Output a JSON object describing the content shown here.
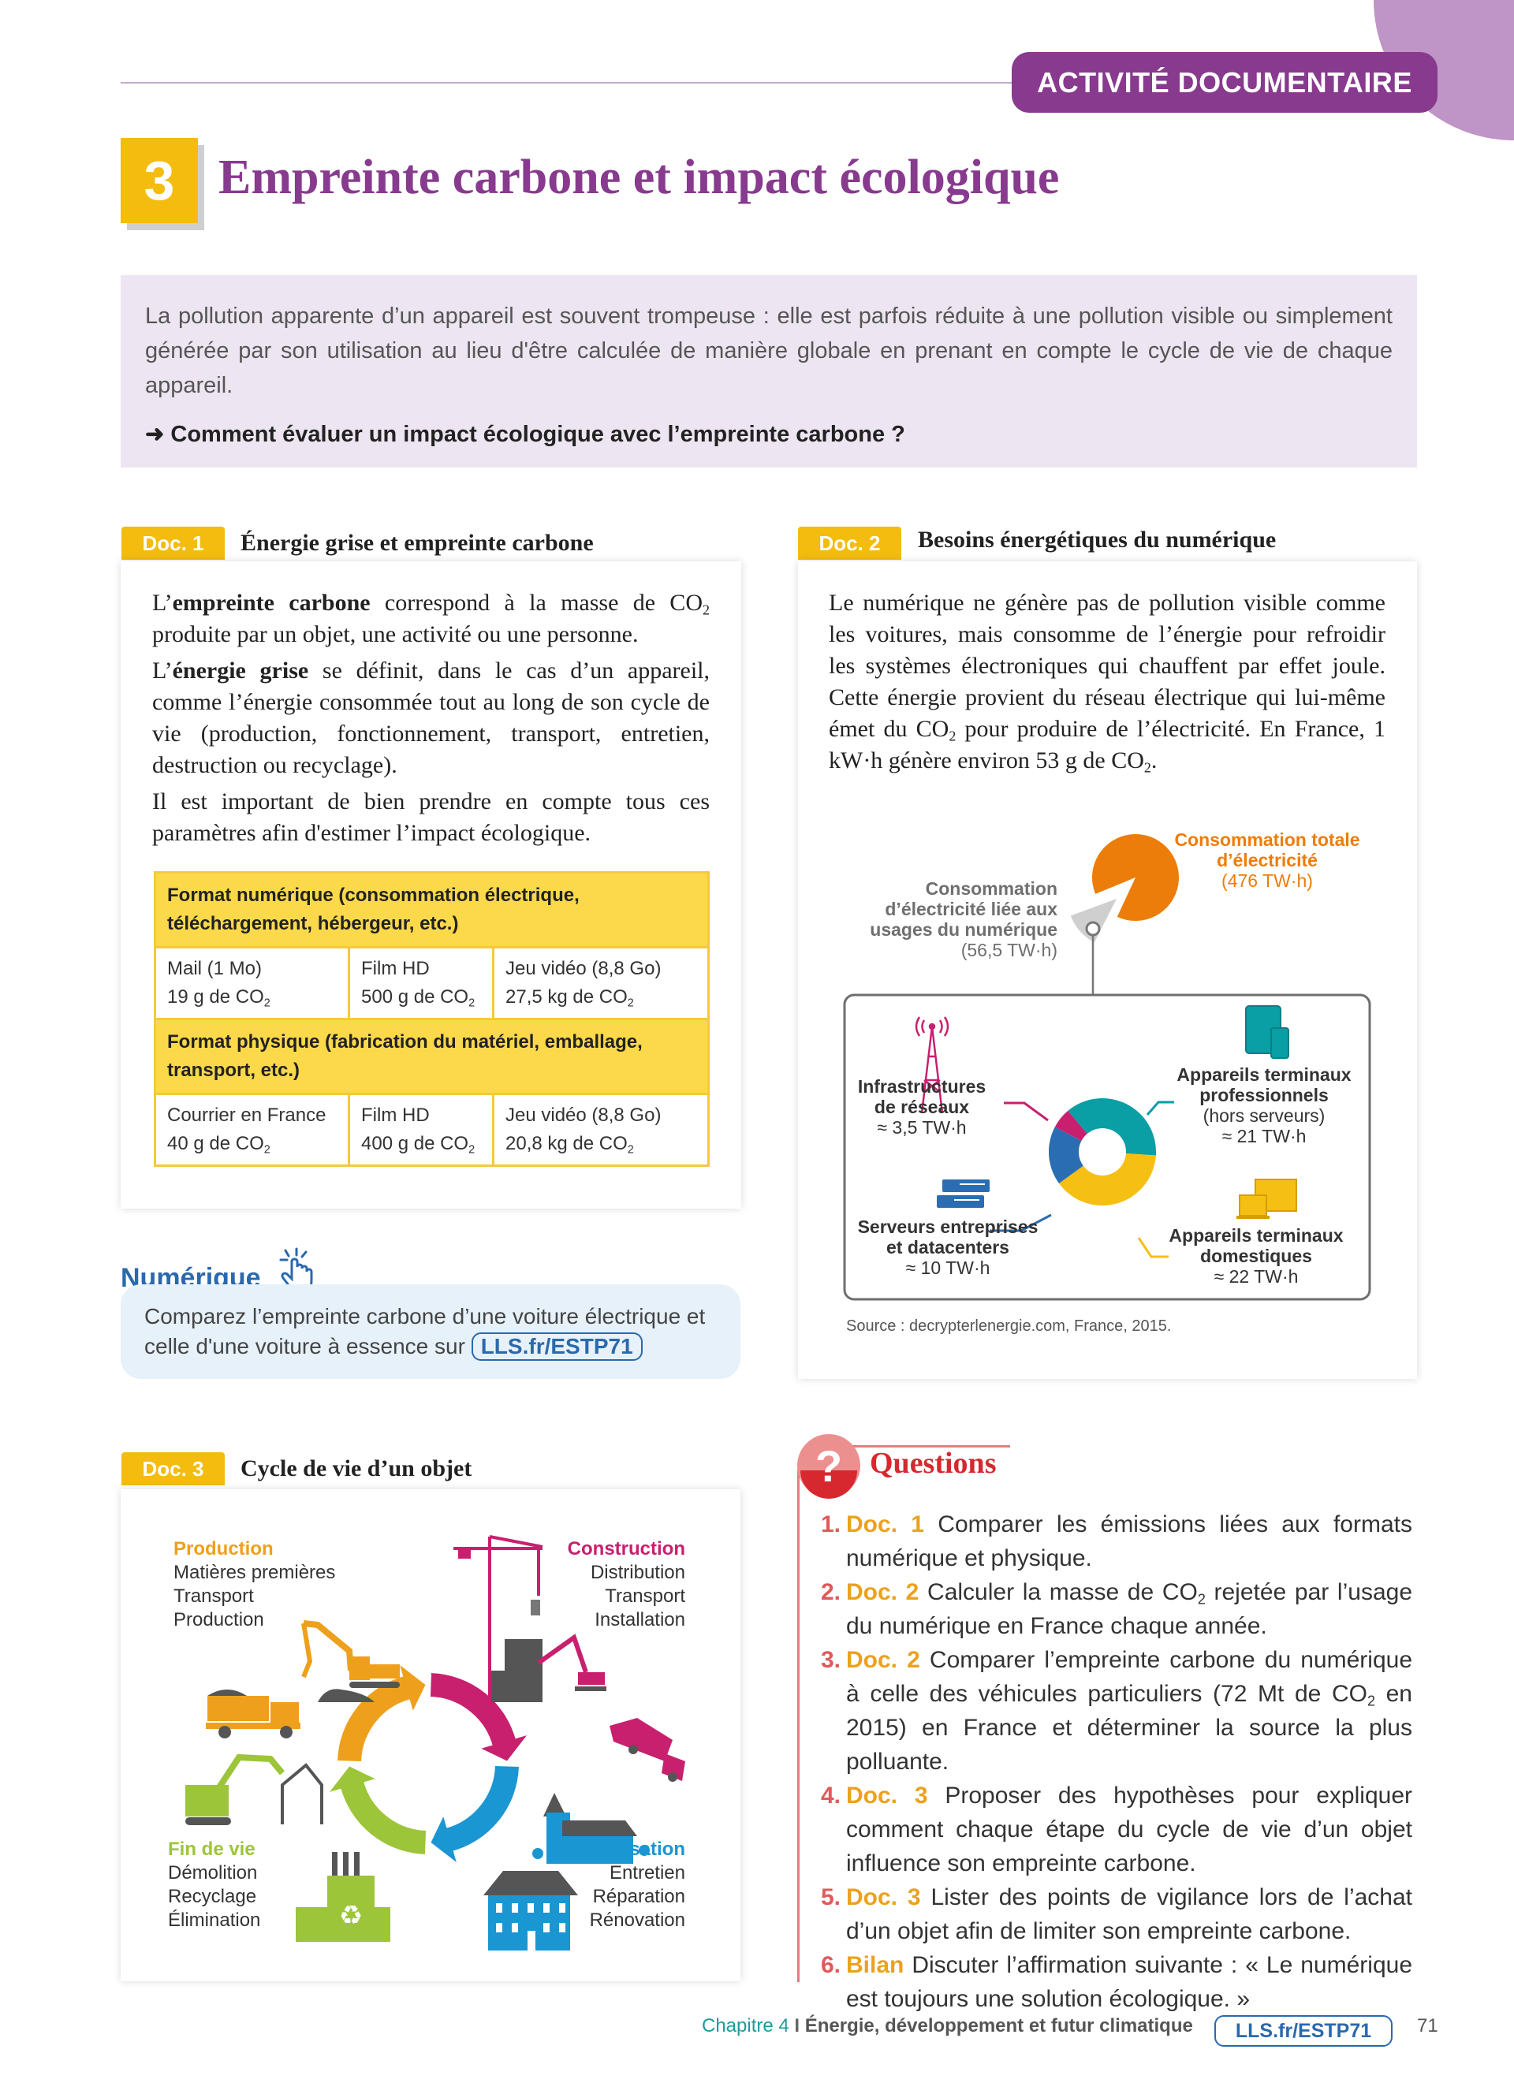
{
  "header": {
    "badge": "ACTIVITÉ DOCUMENTAIRE",
    "number": "3",
    "title": "Empreinte carbone et impact écologique"
  },
  "intro": {
    "text": "La pollution apparente d’un appareil est souvent trompeuse : elle est parfois réduite à une pollution visible ou simplement générée par son utilisation au lieu d'être calculée de manière globale en prenant en compte le cycle de vie de chaque appareil.",
    "arrow": "➜",
    "question": "Comment évaluer un impact écologique avec l’empreinte carbone ?"
  },
  "doc1": {
    "label": "Doc. 1",
    "title": "Énergie grise et empreinte carbone",
    "p1": {
      "pre": "L’",
      "bold": "empreinte carbone",
      "mid": " correspond à la masse de CO",
      "sub": "2",
      "post": " produite par un objet, une activité ou une personne."
    },
    "p2": {
      "pre": "L’",
      "bold": "énergie grise",
      "post": " se définit, dans le cas d’un appareil, comme l’énergie consommée tout au long de son cycle de vie (production, fonctionnement, transport, entretien, destruction ou recyclage)."
    },
    "p3": "Il est important de bien prendre en compte tous ces paramètres afin d'estimer l’impact écologique.",
    "table": [
      {
        "header": "Format numérique (consommation électrique, téléchargement, hébergeur, etc.)",
        "cells": [
          {
            "name": "Mail (1 Mo)",
            "value": "19 g de CO",
            "sub": "2"
          },
          {
            "name": "Film HD",
            "value": "500 g de CO",
            "sub": "2"
          },
          {
            "name": "Jeu vidéo (8,8 Go)",
            "value": "27,5 kg de CO",
            "sub": "2"
          }
        ]
      },
      {
        "header": "Format physique (fabrication du matériel, emballage, transport, etc.)",
        "cells": [
          {
            "name": "Courrier en France",
            "value": "40 g de CO",
            "sub": "2"
          },
          {
            "name": "Film HD",
            "value": "400 g de CO",
            "sub": "2"
          },
          {
            "name": "Jeu vidéo (8,8 Go)",
            "value": "20,8 kg de CO",
            "sub": "2"
          }
        ]
      }
    ]
  },
  "numerique": {
    "heading": "Numérique",
    "text": "Comparez l’empreinte carbone d’une voiture électrique et celle d'une voiture à essence sur",
    "link": "LLS.fr/ESTP71"
  },
  "doc2": {
    "label": "Doc. 2",
    "title": "Besoins énergétiques du numérique",
    "text": {
      "a": "Le numérique ne génère pas de pollution visible comme les voitures, mais consomme de l’énergie pour refroidir les systèmes électroniques qui chauffent par effet joule. Cette énergie provient du réseau électrique qui lui-même émet du CO",
      "sub1": "2",
      "b": " pour produire de l’électricité. En France, 1 kW·h génère environ 53 g de CO",
      "sub2": "2",
      "c": "."
    },
    "source": "Source : decrypterlenergie.com, France, 2015.",
    "colors": {
      "total": "#ec7d0a",
      "numerique": "#cfcfcf",
      "networks": "#c8206e",
      "pro": "#0a9ea5",
      "home": "#f5bf14",
      "servers": "#2b6db3"
    }
  },
  "chart_data": [
    {
      "type": "pie",
      "slices": [
        {
          "label": "Consommation totale d’électricité",
          "value": 476,
          "value_label": "(476 TW·h)"
        },
        {
          "label": "Consommation d’électricité liée aux usages du numérique",
          "value": 56.5,
          "value_label": "(56,5 TW·h)"
        }
      ]
    },
    {
      "type": "pie",
      "donut": true,
      "slices": [
        {
          "label": "Appareils terminaux professionnels",
          "note": "(hors serveurs)",
          "value": 21,
          "value_label": "≈ 21 TW·h"
        },
        {
          "label": "Appareils terminaux domestiques",
          "value": 22,
          "value_label": "≈ 22 TW·h"
        },
        {
          "label": "Serveurs entreprises et datacenters",
          "value": 10,
          "value_label": "≈ 10 TW·h"
        },
        {
          "label": "Infrastructures de réseaux",
          "value": 3.5,
          "value_label": "≈ 3,5 TW·h"
        }
      ]
    }
  ],
  "doc3": {
    "label": "Doc. 3",
    "title": "Cycle de vie d’un objet",
    "stages": [
      {
        "title": "Production",
        "items": [
          "Matières premières",
          "Transport",
          "Production"
        ],
        "color": "#eea01c"
      },
      {
        "title": "Construction",
        "items": [
          "Distribution",
          "Transport",
          "Installation"
        ],
        "color": "#c8206e"
      },
      {
        "title": "Utilisation",
        "items": [
          "Entretien",
          "Réparation",
          "Rénovation"
        ],
        "color": "#1a96d2"
      },
      {
        "title": "Fin de vie",
        "items": [
          "Démolition",
          "Recyclage",
          "Élimination"
        ],
        "color": "#9cc53a"
      }
    ]
  },
  "questions": {
    "title": "Questions",
    "icon": "question-mark",
    "items": [
      {
        "num": "1.",
        "ref": "Doc. 1",
        "text": " Comparer les émissions liées aux formats numérique et physique."
      },
      {
        "num": "2.",
        "ref": "Doc. 2",
        "text": " Calculer la masse de CO",
        "sub": "2",
        "text2": " rejetée par l’usage du numérique en France chaque année."
      },
      {
        "num": "3.",
        "ref": "Doc. 2",
        "text": " Comparer l’empreinte carbone du numérique à celle des véhicules particuliers (72 Mt de CO",
        "sub": "2",
        "text2": " en 2015) en France et déterminer la source la plus polluante."
      },
      {
        "num": "4.",
        "ref": "Doc. 3",
        "text": " Proposer des hypothèses pour expliquer comment chaque étape du cycle de vie d’un objet influence son empreinte carbone."
      },
      {
        "num": "5.",
        "ref": "Doc. 3",
        "text": " Lister des points de vigilance lors de l’achat d’un objet afin de limiter son empreinte carbone."
      },
      {
        "num": "6.",
        "ref": "Bilan",
        "text": " Discuter l’affirmation suivante : « Le numérique est toujours une solution écologique. »"
      }
    ]
  },
  "footer": {
    "chapter": "Chapitre 4",
    "separator": "I",
    "chapter_title": "Énergie, développement et futur climatique",
    "link": "LLS.fr/ESTP71",
    "page": "71"
  }
}
